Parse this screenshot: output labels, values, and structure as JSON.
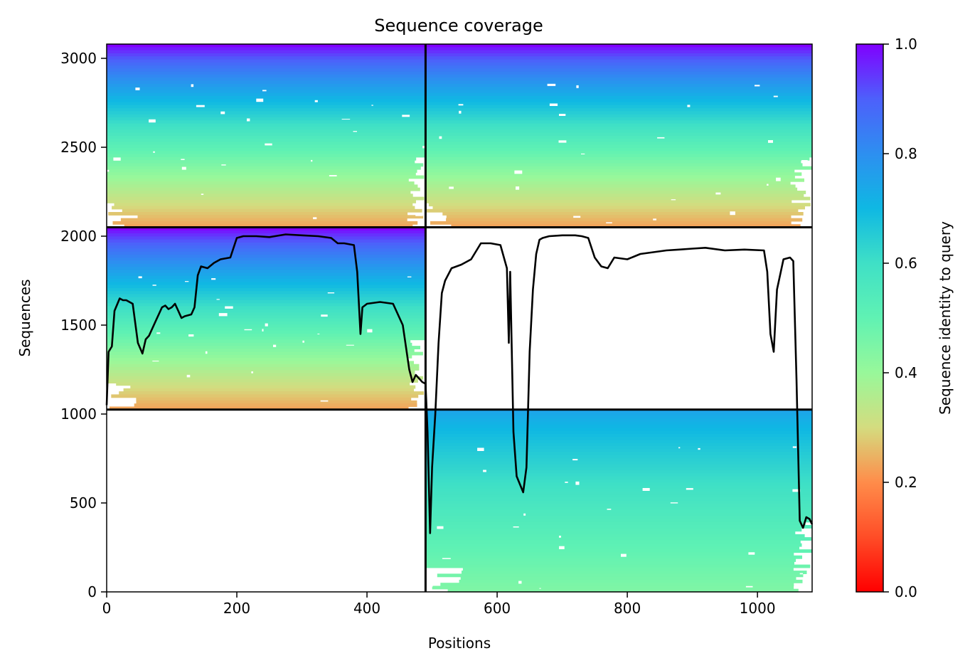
{
  "chart_data": {
    "type": "heatmap",
    "title": "Sequence coverage",
    "xlabel": "Positions",
    "ylabel": "Sequences",
    "xlim": [
      0,
      1084
    ],
    "ylim": [
      0,
      3080
    ],
    "xticks": [
      0,
      200,
      400,
      600,
      800,
      1000
    ],
    "yticks": [
      0,
      500,
      1000,
      1500,
      2000,
      2500,
      3000
    ],
    "colorbar": {
      "label": "Sequence identity to query",
      "range": [
        0.0,
        1.0
      ],
      "ticks": [
        "0.0",
        "0.2",
        "0.4",
        "0.6",
        "0.8",
        "1.0"
      ],
      "colormap": "rainbow_r"
    },
    "blocks": [
      {
        "name": "block-top-left",
        "x": [
          0,
          490
        ],
        "y": [
          2050,
          3080
        ],
        "identity_bottom": 0.22,
        "identity_top": 1.0
      },
      {
        "name": "block-top-right",
        "x": [
          490,
          1084
        ],
        "y": [
          2050,
          3080
        ],
        "identity_bottom": 0.22,
        "identity_top": 1.0
      },
      {
        "name": "block-mid-left",
        "x": [
          0,
          490
        ],
        "y": [
          1025,
          2050
        ],
        "identity_bottom": 0.22,
        "identity_top": 1.0
      },
      {
        "name": "block-bottom-right",
        "x": [
          490,
          1084
        ],
        "y": [
          0,
          1025
        ],
        "identity_bottom": 0.44,
        "identity_top": 0.75
      }
    ],
    "dividers": {
      "vertical_x": [
        490
      ],
      "horizontal_y": [
        1025,
        2050
      ]
    },
    "coverage_line": {
      "color": "#000000",
      "x": [
        0,
        3,
        8,
        12,
        20,
        25,
        30,
        40,
        48,
        55,
        60,
        65,
        75,
        85,
        90,
        95,
        100,
        105,
        110,
        115,
        120,
        130,
        135,
        140,
        145,
        155,
        165,
        175,
        190,
        200,
        210,
        230,
        250,
        275,
        300,
        325,
        345,
        355,
        365,
        380,
        385,
        390,
        393,
        400,
        420,
        440,
        455,
        465,
        470,
        475,
        480,
        485,
        490,
        493,
        497,
        500,
        505,
        510,
        515,
        520,
        530,
        545,
        560,
        575,
        590,
        605,
        615,
        618,
        620,
        625,
        630,
        640,
        645,
        650,
        655,
        660,
        665,
        670,
        680,
        700,
        720,
        730,
        740,
        750,
        760,
        770,
        780,
        800,
        820,
        840,
        860,
        880,
        900,
        920,
        950,
        980,
        1010,
        1015,
        1020,
        1025,
        1030,
        1040,
        1050,
        1055,
        1060,
        1065,
        1070,
        1075,
        1080,
        1084
      ],
      "y": [
        1050,
        1350,
        1380,
        1580,
        1650,
        1640,
        1640,
        1620,
        1400,
        1340,
        1420,
        1440,
        1520,
        1600,
        1610,
        1590,
        1600,
        1620,
        1580,
        1540,
        1550,
        1560,
        1600,
        1780,
        1830,
        1820,
        1850,
        1870,
        1880,
        1990,
        2000,
        2000,
        1995,
        2010,
        2005,
        2000,
        1990,
        1960,
        1960,
        1950,
        1800,
        1450,
        1600,
        1620,
        1630,
        1620,
        1500,
        1250,
        1180,
        1220,
        1200,
        1180,
        1170,
        900,
        330,
        700,
        1000,
        1400,
        1680,
        1750,
        1820,
        1840,
        1870,
        1960,
        1960,
        1950,
        1820,
        1400,
        1800,
        900,
        650,
        560,
        700,
        1350,
        1700,
        1900,
        1980,
        1990,
        2000,
        2005,
        2005,
        2000,
        1990,
        1880,
        1830,
        1820,
        1880,
        1870,
        1900,
        1910,
        1920,
        1925,
        1930,
        1935,
        1920,
        1925,
        1920,
        1800,
        1450,
        1350,
        1700,
        1870,
        1880,
        1860,
        1200,
        400,
        360,
        420,
        410,
        380
      ]
    }
  }
}
